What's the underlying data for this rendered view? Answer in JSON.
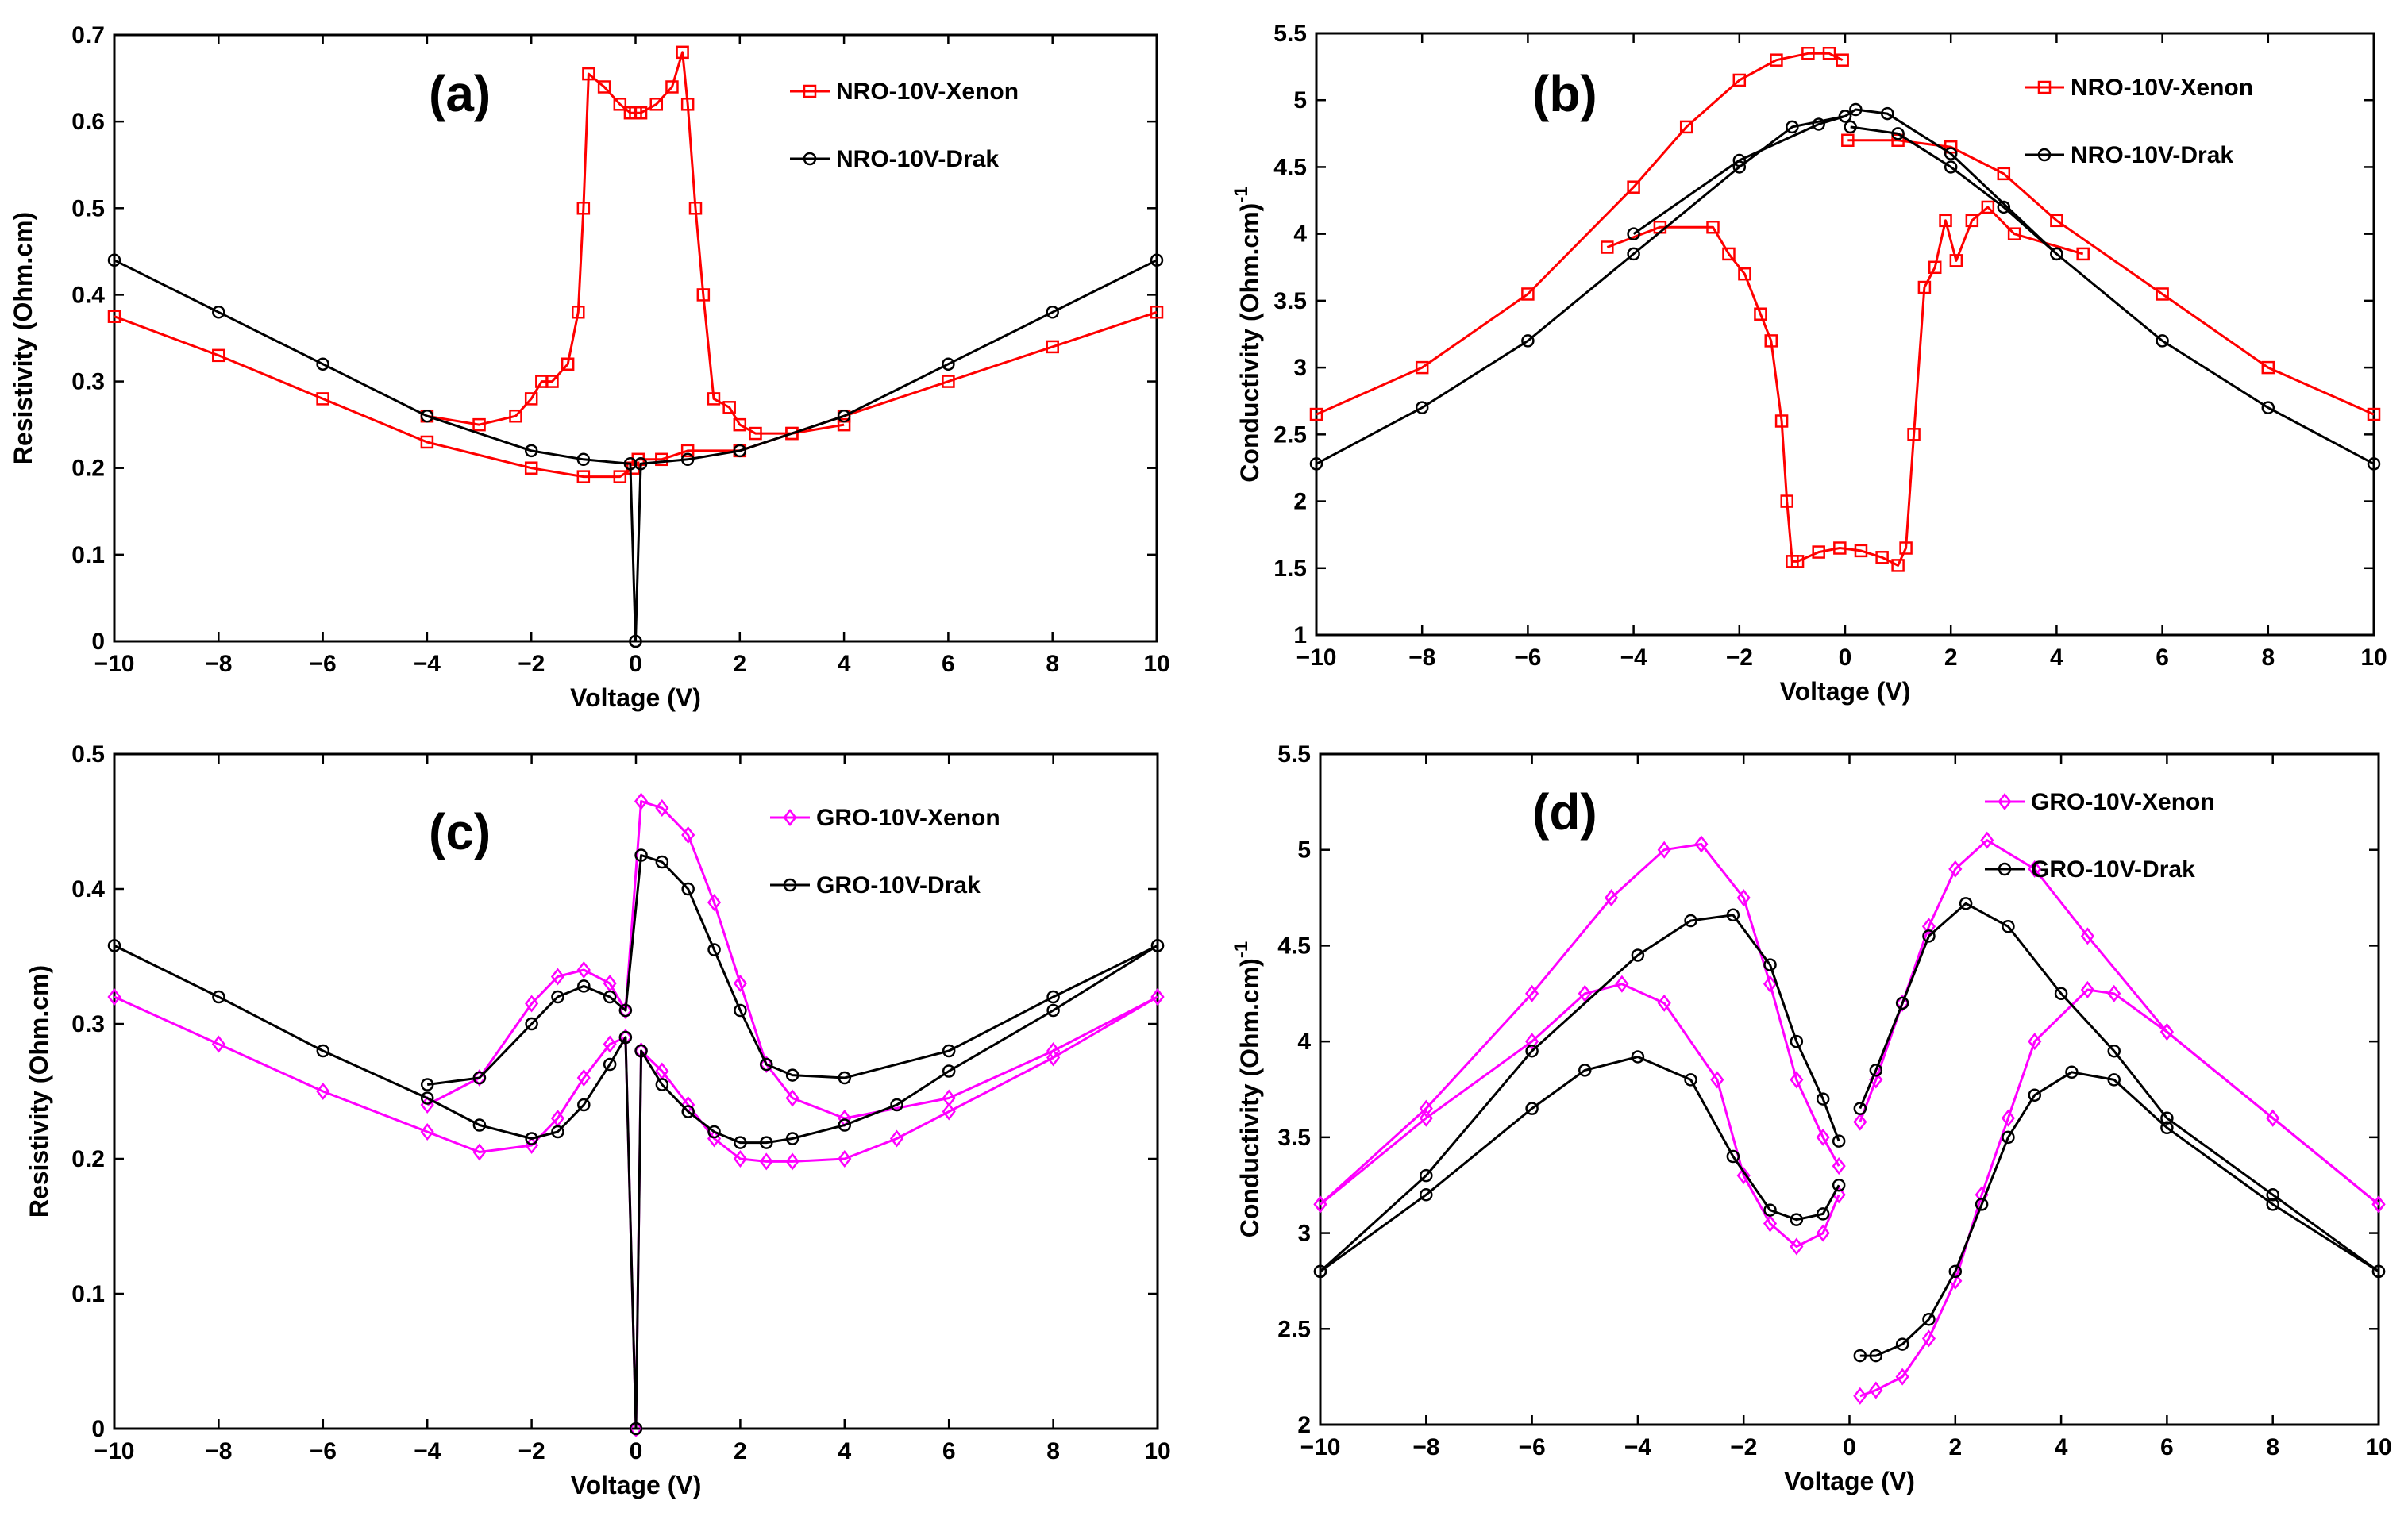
{
  "chart_data": [
    {
      "id": "a",
      "type": "line",
      "panel_label": "(a)",
      "xlabel": "Voltage (V)",
      "ylabel": "Resistivity (Ohm.cm)",
      "xlim": [
        -10,
        10
      ],
      "ylim": [
        0,
        0.7
      ],
      "xticks": [
        -10,
        -8,
        -6,
        -4,
        -2,
        0,
        2,
        4,
        6,
        8,
        10
      ],
      "yticks": [
        0,
        0.1,
        0.2,
        0.3,
        0.4,
        0.5,
        0.6,
        0.7
      ],
      "ytick_labels": [
        "0",
        "0.1",
        "0.2",
        "0.3",
        "0.4",
        "0.5",
        "0.6",
        "0.7"
      ],
      "legend_position": "top-right",
      "series": [
        {
          "name": "NRO-10V-Xenon",
          "color": "#ff0000",
          "marker": "square",
          "segments": [
            {
              "x": [
                -10,
                -8,
                -6,
                -4,
                -2,
                -1,
                -0.3,
                -0.05
              ],
              "y": [
                0.375,
                0.33,
                0.28,
                0.23,
                0.2,
                0.19,
                0.19,
                0.2
              ]
            },
            {
              "x": [
                -4,
                -3,
                -2.3,
                -2,
                -1.8,
                -1.6,
                -1.3,
                -1.1,
                -1.0,
                -0.9,
                -0.6,
                -0.3,
                -0.1,
                0,
                0.1,
                0.4,
                0.7,
                0.9,
                1.0,
                1.15,
                1.3,
                1.5,
                1.8,
                2.0,
                2.3,
                3,
                4
              ],
              "y": [
                0.26,
                0.25,
                0.26,
                0.28,
                0.3,
                0.3,
                0.32,
                0.38,
                0.5,
                0.655,
                0.64,
                0.62,
                0.61,
                0.61,
                0.61,
                0.62,
                0.64,
                0.68,
                0.62,
                0.5,
                0.4,
                0.28,
                0.27,
                0.25,
                0.24,
                0.24,
                0.25
              ]
            },
            {
              "x": [
                0.05,
                0.5,
                1,
                2,
                3,
                4,
                6,
                8,
                10
              ],
              "y": [
                0.21,
                0.21,
                0.22,
                0.22,
                0.24,
                0.26,
                0.3,
                0.34,
                0.38
              ]
            }
          ]
        },
        {
          "name": "NRO-10V-Drak",
          "color": "#000000",
          "marker": "circle",
          "segments": [
            {
              "x": [
                -10,
                -8,
                -6,
                -4,
                -2,
                -1,
                -0.1,
                0
              ],
              "y": [
                0.44,
                0.38,
                0.32,
                0.26,
                0.22,
                0.21,
                0.205,
                0.0
              ]
            },
            {
              "x": [
                0,
                0.1,
                1,
                2,
                4,
                6,
                8,
                10
              ],
              "y": [
                0.0,
                0.205,
                0.21,
                0.22,
                0.26,
                0.32,
                0.38,
                0.44
              ]
            }
          ]
        }
      ]
    },
    {
      "id": "b",
      "type": "line",
      "panel_label": "(b)",
      "xlabel": "Voltage (V)",
      "ylabel": "Conductivity (Ohm.cm)",
      "ylabel_superscript": "-1",
      "xlim": [
        -10,
        10
      ],
      "ylim": [
        1,
        5.5
      ],
      "xticks": [
        -10,
        -8,
        -6,
        -4,
        -2,
        0,
        2,
        4,
        6,
        8,
        10
      ],
      "yticks": [
        1,
        1.5,
        2,
        2.5,
        3,
        3.5,
        4,
        4.5,
        5,
        5.5
      ],
      "ytick_labels": [
        "1",
        "1.5",
        "2",
        "2.5",
        "3",
        "3.5",
        "4",
        "4.5",
        "5",
        "5.5"
      ],
      "legend_position": "top-right",
      "series": [
        {
          "name": "NRO-10V-Xenon",
          "color": "#ff0000",
          "marker": "square",
          "segments": [
            {
              "x": [
                -10,
                -8,
                -6,
                -4,
                -3,
                -2,
                -1.3,
                -0.7,
                -0.3,
                -0.05
              ],
              "y": [
                2.65,
                3.0,
                3.55,
                4.35,
                4.8,
                5.15,
                5.3,
                5.35,
                5.35,
                5.3
              ]
            },
            {
              "x": [
                -4.5,
                -3.5,
                -2.5,
                -2.2,
                -1.9,
                -1.6,
                -1.4,
                -1.2,
                -1.1,
                -1.0,
                -0.9,
                -0.5,
                -0.1,
                0.3,
                0.7,
                1.0,
                1.15,
                1.3,
                1.5,
                1.7,
                1.9,
                2.1,
                2.4,
                2.7,
                3.2,
                4.5
              ],
              "y": [
                3.9,
                4.05,
                4.05,
                3.85,
                3.7,
                3.4,
                3.2,
                2.6,
                2.0,
                1.55,
                1.55,
                1.62,
                1.65,
                1.63,
                1.58,
                1.52,
                1.65,
                2.5,
                3.6,
                3.75,
                4.1,
                3.8,
                4.1,
                4.2,
                4.0,
                3.85
              ]
            },
            {
              "x": [
                0.05,
                1,
                2,
                3,
                4,
                6,
                8,
                10
              ],
              "y": [
                4.7,
                4.7,
                4.65,
                4.45,
                4.1,
                3.55,
                3.0,
                2.65
              ]
            }
          ]
        },
        {
          "name": "NRO-10V-Drak",
          "color": "#000000",
          "marker": "circle",
          "segments": [
            {
              "x": [
                -10,
                -8,
                -6,
                -4,
                -2,
                -1,
                0
              ],
              "y": [
                2.28,
                2.7,
                3.2,
                3.85,
                4.5,
                4.8,
                4.88
              ]
            },
            {
              "x": [
                -4,
                -2,
                -0.5,
                0,
                0.2,
                0.8,
                2,
                4,
                6,
                8,
                10
              ],
              "y": [
                4.0,
                4.55,
                4.82,
                4.88,
                4.93,
                4.9,
                4.6,
                3.85,
                3.2,
                2.7,
                2.28
              ]
            },
            {
              "x": [
                0.1,
                1,
                2,
                3,
                4
              ],
              "y": [
                4.8,
                4.75,
                4.5,
                4.2,
                3.85
              ]
            }
          ]
        }
      ]
    },
    {
      "id": "c",
      "type": "line",
      "panel_label": "(c)",
      "xlabel": "Voltage (V)",
      "ylabel": "Resistivity (Ohm.cm)",
      "xlim": [
        -10,
        10
      ],
      "ylim": [
        0,
        0.5
      ],
      "xticks": [
        -10,
        -8,
        -6,
        -4,
        -2,
        0,
        2,
        4,
        6,
        8,
        10
      ],
      "yticks": [
        0,
        0.1,
        0.2,
        0.3,
        0.4,
        0.5
      ],
      "ytick_labels": [
        "0",
        "0.1",
        "0.2",
        "0.3",
        "0.4",
        "0.5"
      ],
      "legend_position": "top-right",
      "series": [
        {
          "name": "GRO-10V-Xenon",
          "color": "#ff00ff",
          "marker": "diamond",
          "segments": [
            {
              "x": [
                -10,
                -8,
                -6,
                -4,
                -3,
                -2,
                -1.5,
                -1,
                -0.5,
                -0.2,
                0,
                0.1,
                0.5,
                1,
                1.5,
                2,
                2.5,
                3,
                4,
                5,
                6,
                8,
                10
              ],
              "y": [
                0.32,
                0.285,
                0.25,
                0.22,
                0.205,
                0.21,
                0.23,
                0.26,
                0.285,
                0.29,
                0.0,
                0.28,
                0.265,
                0.24,
                0.215,
                0.2,
                0.198,
                0.198,
                0.2,
                0.215,
                0.235,
                0.275,
                0.32
              ]
            },
            {
              "x": [
                -4,
                -3,
                -2,
                -1.5,
                -1,
                -0.5,
                -0.2,
                0.1,
                0.5,
                1,
                1.5,
                2,
                2.5,
                3,
                4,
                6,
                8,
                10
              ],
              "y": [
                0.24,
                0.26,
                0.315,
                0.335,
                0.34,
                0.33,
                0.31,
                0.465,
                0.46,
                0.44,
                0.39,
                0.33,
                0.27,
                0.245,
                0.23,
                0.245,
                0.28,
                0.32
              ]
            }
          ]
        },
        {
          "name": "GRO-10V-Drak",
          "color": "#000000",
          "marker": "circle",
          "segments": [
            {
              "x": [
                -10,
                -8,
                -6,
                -4,
                -3,
                -2,
                -1.5,
                -1,
                -0.5,
                -0.2,
                0,
                0.1,
                0.5,
                1,
                1.5,
                2,
                2.5,
                3,
                4,
                5,
                6,
                8,
                10
              ],
              "y": [
                0.358,
                0.32,
                0.28,
                0.245,
                0.225,
                0.215,
                0.22,
                0.24,
                0.27,
                0.29,
                0.0,
                0.28,
                0.255,
                0.235,
                0.22,
                0.212,
                0.212,
                0.215,
                0.225,
                0.24,
                0.265,
                0.31,
                0.358
              ]
            },
            {
              "x": [
                -4,
                -3,
                -2,
                -1.5,
                -1,
                -0.5,
                -0.2,
                0.1,
                0.5,
                1,
                1.5,
                2,
                2.5,
                3,
                4,
                6,
                8,
                10
              ],
              "y": [
                0.255,
                0.26,
                0.3,
                0.32,
                0.328,
                0.32,
                0.31,
                0.425,
                0.42,
                0.4,
                0.355,
                0.31,
                0.27,
                0.262,
                0.26,
                0.28,
                0.32,
                0.358
              ]
            }
          ]
        }
      ]
    },
    {
      "id": "d",
      "type": "line",
      "panel_label": "(d)",
      "xlabel": "Voltage (V)",
      "ylabel": "Conductivity (Ohm.cm)",
      "ylabel_superscript": "-1",
      "xlim": [
        -10,
        10
      ],
      "ylim": [
        2,
        5.5
      ],
      "xticks": [
        -10,
        -8,
        -6,
        -4,
        -2,
        0,
        2,
        4,
        6,
        8,
        10
      ],
      "yticks": [
        2,
        2.5,
        3,
        3.5,
        4,
        4.5,
        5,
        5.5
      ],
      "ytick_labels": [
        "2",
        "2.5",
        "3",
        "3.5",
        "4",
        "4.5",
        "5",
        "5.5"
      ],
      "legend_position": "top-right",
      "series": [
        {
          "name": "GRO-10V-Xenon",
          "color": "#ff00ff",
          "marker": "diamond",
          "segments": [
            {
              "x": [
                -10,
                -8,
                -6,
                -4.5,
                -3.5,
                -2.8,
                -2,
                -1.5,
                -1,
                -0.5,
                -0.2
              ],
              "y": [
                3.15,
                3.65,
                4.25,
                4.75,
                5.0,
                5.03,
                4.75,
                4.3,
                3.8,
                3.5,
                3.35
              ]
            },
            {
              "x": [
                -10,
                -8,
                -6,
                -5,
                -4.3,
                -3.5,
                -2.5,
                -2,
                -1.5,
                -1,
                -0.5,
                -0.2
              ],
              "y": [
                3.15,
                3.6,
                4.0,
                4.25,
                4.3,
                4.2,
                3.8,
                3.3,
                3.05,
                2.93,
                3.0,
                3.2
              ]
            },
            {
              "x": [
                0.2,
                0.5,
                1,
                1.5,
                2,
                2.6,
                3.5,
                4.5,
                6,
                8,
                10
              ],
              "y": [
                3.58,
                3.8,
                4.2,
                4.6,
                4.9,
                5.05,
                4.9,
                4.55,
                4.05,
                3.6,
                3.15
              ]
            },
            {
              "x": [
                0.2,
                0.5,
                1,
                1.5,
                2,
                2.5,
                3,
                3.5,
                4.5,
                5,
                6,
                8,
                10
              ],
              "y": [
                2.15,
                2.18,
                2.25,
                2.45,
                2.75,
                3.2,
                3.6,
                4.0,
                4.27,
                4.25,
                4.05,
                3.6,
                3.15
              ]
            }
          ]
        },
        {
          "name": "GRO-10V-Drak",
          "color": "#000000",
          "marker": "circle",
          "segments": [
            {
              "x": [
                -10,
                -8,
                -6,
                -4,
                -3,
                -2.2,
                -1.5,
                -1,
                -0.5,
                -0.2
              ],
              "y": [
                2.8,
                3.3,
                3.95,
                4.45,
                4.63,
                4.66,
                4.4,
                4.0,
                3.7,
                3.48
              ]
            },
            {
              "x": [
                -10,
                -8,
                -6,
                -5,
                -4,
                -3,
                -2.2,
                -1.5,
                -1,
                -0.5,
                -0.2
              ],
              "y": [
                2.8,
                3.2,
                3.65,
                3.85,
                3.92,
                3.8,
                3.4,
                3.12,
                3.07,
                3.1,
                3.25
              ]
            },
            {
              "x": [
                0.2,
                0.5,
                1,
                1.5,
                2.2,
                3,
                4,
                5,
                6,
                8,
                10
              ],
              "y": [
                3.65,
                3.85,
                4.2,
                4.55,
                4.72,
                4.6,
                4.25,
                3.95,
                3.6,
                3.2,
                2.8
              ]
            },
            {
              "x": [
                0.2,
                0.5,
                1,
                1.5,
                2,
                2.5,
                3,
                3.5,
                4.2,
                5,
                6,
                8,
                10
              ],
              "y": [
                2.36,
                2.36,
                2.42,
                2.55,
                2.8,
                3.15,
                3.5,
                3.72,
                3.84,
                3.8,
                3.55,
                3.15,
                2.8
              ]
            }
          ]
        }
      ]
    }
  ]
}
